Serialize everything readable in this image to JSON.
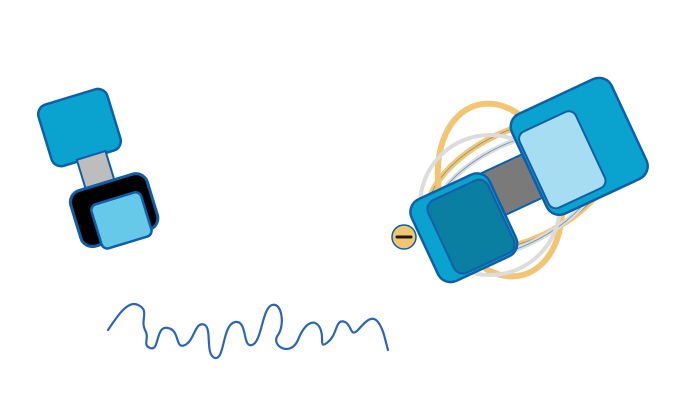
{
  "colors": {
    "background": "#ffffff",
    "blue_dark": "#0e5fa8",
    "blue_mid": "#0aa3d0",
    "blue_light": "#66c9ea",
    "blue_pale": "#a6ddf2",
    "teal_dark": "#0b7fa2",
    "gray_light": "#bdbdbd",
    "gray_dark": "#7a7a7a",
    "black": "#000000",
    "gold": "#f2c572",
    "scribble": "#2b65b8"
  },
  "icons": {
    "left_object": "cable-connector-icon",
    "right_object": "tangled-cable-connector-icon",
    "minus_badge": "minus-icon",
    "scribble": "wavy-line"
  }
}
